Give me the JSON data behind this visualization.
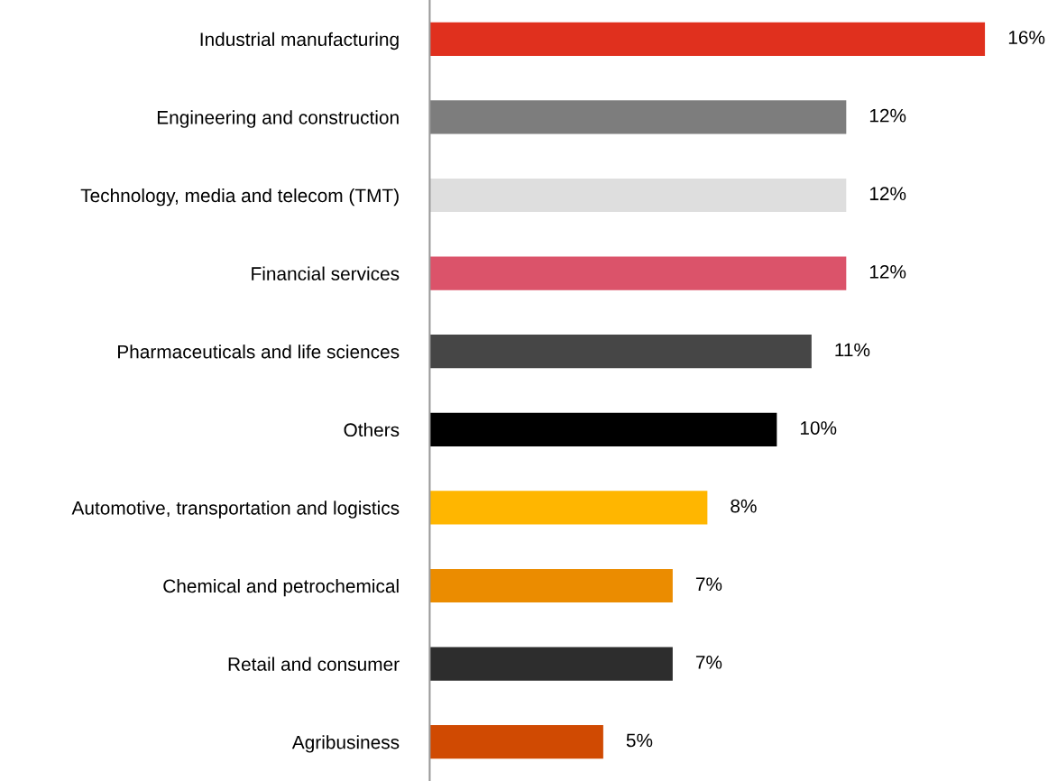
{
  "chart_data": {
    "type": "bar",
    "orientation": "horizontal",
    "categories": [
      "Industrial manufacturing",
      "Engineering and construction",
      "Technology, media and telecom (TMT)",
      "Financial services",
      "Pharmaceuticals and life sciences",
      "Others",
      "Automotive, transportation and logistics",
      "Chemical and petrochemical",
      "Retail and consumer",
      "Agribusiness"
    ],
    "values": [
      16,
      12,
      12,
      12,
      11,
      10,
      8,
      7,
      7,
      5
    ],
    "colors": [
      "#e0301e",
      "#7d7d7d",
      "#dedede",
      "#db536a",
      "#464646",
      "#000000",
      "#ffb600",
      "#eb8c00",
      "#2d2d2d",
      "#d04a02"
    ],
    "value_labels": [
      "16%",
      "12%",
      "12%",
      "12%",
      "11%",
      "10%",
      "8%",
      "7%",
      "7%",
      "5%"
    ],
    "grid": false,
    "legend": false,
    "tick_labels": "y"
  }
}
